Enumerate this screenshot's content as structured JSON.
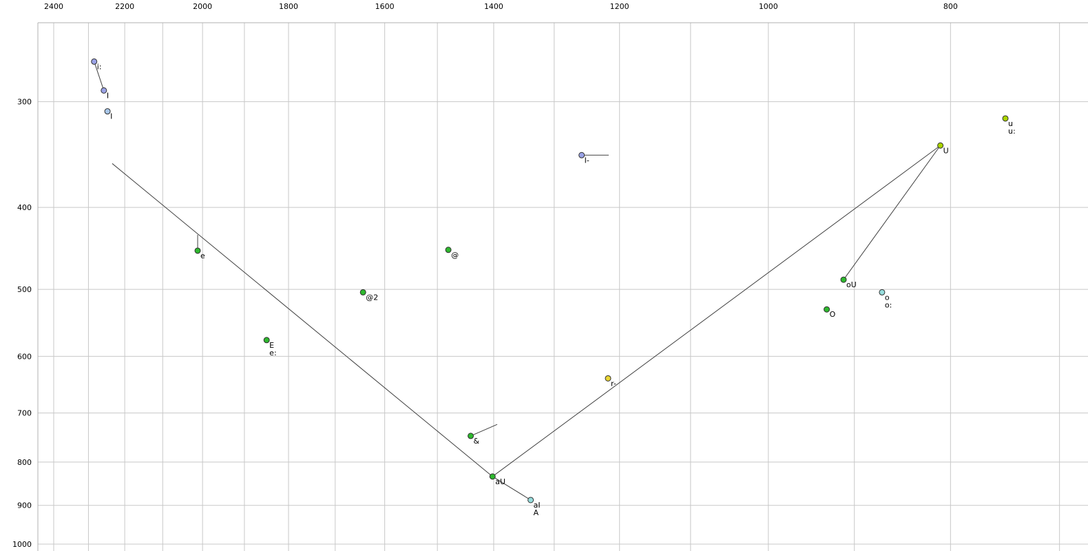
{
  "page": {
    "background": "#ffffff"
  },
  "chart_data": {
    "type": "scatter",
    "title": "",
    "description": "Vowel formant plot (F2 horizontal reversed log axis, F1 vertical log axis) with SAMPA vowel labels",
    "xlim": [
      2447,
      676
    ],
    "ylim": [
      242,
      1019
    ],
    "x_axis": {
      "scale": "log",
      "reversed": true,
      "ticks": [
        2400,
        2200,
        2000,
        1800,
        1600,
        1400,
        1200,
        1000,
        800
      ],
      "gridlines": [
        2400,
        2300,
        2200,
        2100,
        2000,
        1900,
        1800,
        1700,
        1600,
        1500,
        1400,
        1300,
        1200,
        1100,
        1000,
        900,
        800,
        700
      ]
    },
    "y_axis": {
      "scale": "log",
      "ticks": [
        300,
        400,
        500,
        600,
        700,
        800,
        900,
        1000
      ],
      "gridlines": [
        300,
        400,
        500,
        600,
        700,
        800,
        900,
        1000
      ]
    },
    "grid_on": true,
    "grid_color": "#c8c8c8",
    "frame_color": "#b0b0b0",
    "segment_color": "#404040",
    "dot_outline": "#303030",
    "dot_radius": 4,
    "colors": {
      "periwinkle": "#9aa2e6",
      "lightblue": "#a8c6e8",
      "green": "#2eb82e",
      "chartreuse": "#aad400",
      "yellow": "#e8d434",
      "cyan": "#96dcdc"
    },
    "points": [
      {
        "lines": [
          "i:"
        ],
        "f2": 2284,
        "f1": 269,
        "color": "#9aa2e6"
      },
      {
        "lines": [
          "I"
        ],
        "f2": 2257,
        "f1": 291,
        "color": "#9aa2e6"
      },
      {
        "lines": [
          "I"
        ],
        "f2": 2247,
        "f1": 308,
        "color": "#a8c6e8"
      },
      {
        "lines": [
          "u",
          "u:"
        ],
        "f2": 748,
        "f1": 314,
        "color": "#aad400"
      },
      {
        "lines": [
          "U"
        ],
        "f2": 810,
        "f1": 338,
        "color": "#aad400"
      },
      {
        "lines": [
          "I-"
        ],
        "f2": 1257,
        "f1": 347,
        "color": "#9aa2e6"
      },
      {
        "lines": [
          "e"
        ],
        "f2": 2012,
        "f1": 450,
        "color": "#2eb82e"
      },
      {
        "lines": [
          "@"
        ],
        "f2": 1480,
        "f1": 449,
        "color": "#2eb82e"
      },
      {
        "lines": [
          "@2"
        ],
        "f2": 1643,
        "f1": 504,
        "color": "#2eb82e"
      },
      {
        "lines": [
          "E",
          "e:"
        ],
        "f2": 1849,
        "f1": 574,
        "color": "#2eb82e"
      },
      {
        "lines": [
          "oU"
        ],
        "f2": 912,
        "f1": 487,
        "color": "#2eb82e"
      },
      {
        "lines": [
          "o",
          "o:"
        ],
        "f2": 870,
        "f1": 504,
        "color": "#96dcdc"
      },
      {
        "lines": [
          "O"
        ],
        "f2": 931,
        "f1": 528,
        "color": "#2eb82e"
      },
      {
        "lines": [
          "r-"
        ],
        "f2": 1217,
        "f1": 637,
        "color": "#e8d434"
      },
      {
        "lines": [
          "&"
        ],
        "f2": 1440,
        "f1": 745,
        "color": "#2eb82e"
      },
      {
        "lines": [
          "aU"
        ],
        "f2": 1402,
        "f1": 832,
        "color": "#2eb82e"
      },
      {
        "lines": [
          "aI",
          "A"
        ],
        "f2": 1338,
        "f1": 887,
        "color": "#96dcdc"
      }
    ],
    "segments": [
      {
        "f2a": 2284,
        "f1a": 269,
        "f2b": 2257,
        "f1b": 291
      },
      {
        "f2a": 2234,
        "f1a": 355,
        "f2b": 1402,
        "f1b": 832
      },
      {
        "f2a": 1402,
        "f1a": 832,
        "f2b": 810,
        "f1b": 338
      },
      {
        "f2a": 810,
        "f1a": 338,
        "f2b": 912,
        "f1b": 487
      },
      {
        "f2a": 1402,
        "f1a": 832,
        "f2b": 1338,
        "f1b": 887
      },
      {
        "f2a": 1440,
        "f1a": 745,
        "f2b": 1394,
        "f1b": 722
      },
      {
        "f2a": 2012,
        "f1a": 450,
        "f2b": 2012,
        "f1b": 431
      },
      {
        "f2a": 1257,
        "f1a": 347,
        "f2b": 1216,
        "f1b": 347
      }
    ]
  }
}
